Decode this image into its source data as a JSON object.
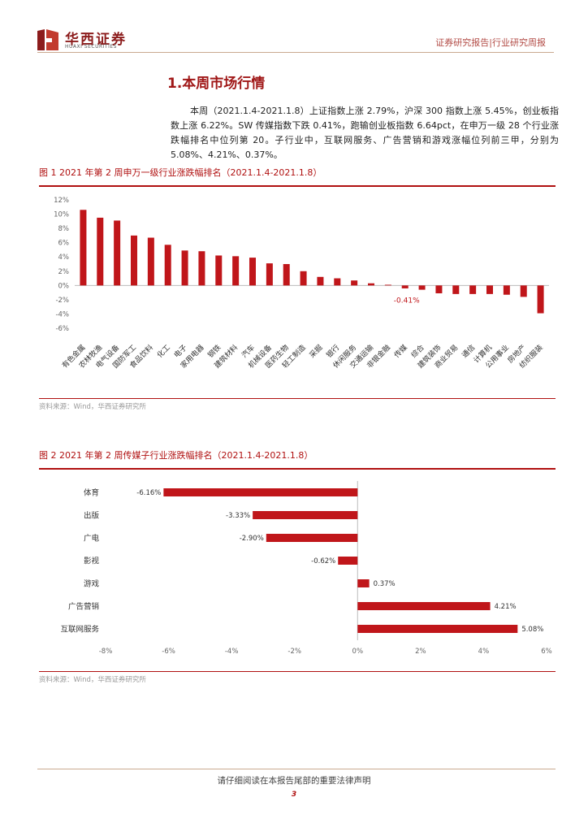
{
  "header": {
    "logo_cn": "华西证券",
    "logo_en": "HUAXI SECURITIES",
    "doc_type": "证券研究报告|行业研究周报"
  },
  "section": {
    "title": "1.本周市场行情",
    "paragraph": "本周（2021.1.4-2021.1.8）上证指数上涨 2.79%，沪深 300 指数上涨 5.45%，创业板指数上涨 6.22%。SW 传媒指数下跌 0.41%，跑输创业板指数 6.64pct，在申万一级 28 个行业涨跌幅排名中位列第 20。子行业中，互联网服务、广告营销和游戏涨幅位列前三甲，分别为 5.08%、4.21%、0.37%。"
  },
  "figure1": {
    "title": "图 1 2021 年第 2 周申万一级行业涨跌幅排名（2021.1.4-2021.1.8）",
    "source": "资料来源：Wind，华西证券研究所"
  },
  "figure2": {
    "title": "图 2 2021 年第 2 周传媒子行业涨跌幅排名（2021.1.4-2021.1.8）",
    "source": "资料来源：Wind，华西证券研究所"
  },
  "footer": {
    "disclaimer": "请仔细阅读在本报告尾部的重要法律声明",
    "page": "3"
  },
  "colors": {
    "bar": "#c0161a",
    "accent": "#a01818"
  },
  "chart_data": [
    {
      "type": "bar",
      "title": "",
      "categories": [
        "有色金属",
        "农林牧渔",
        "电气设备",
        "国防军工",
        "食品饮料",
        "化工",
        "电子",
        "家用电器",
        "钢铁",
        "建筑材料",
        "汽车",
        "机械设备",
        "医药生物",
        "轻工制造",
        "采掘",
        "银行",
        "休闲服务",
        "交通运输",
        "非银金融",
        "传媒",
        "综合",
        "建筑装饰",
        "商业贸易",
        "通信",
        "计算机",
        "公用事业",
        "房地产",
        "纺织服装"
      ],
      "values": [
        10.6,
        9.5,
        9.1,
        7.0,
        6.7,
        5.7,
        4.9,
        4.8,
        4.2,
        4.1,
        3.9,
        3.1,
        3.0,
        2.0,
        1.2,
        1.0,
        0.7,
        0.3,
        0.1,
        -0.41,
        -0.6,
        -1.1,
        -1.2,
        -1.2,
        -1.2,
        -1.3,
        -1.6,
        -3.9
      ],
      "highlight_label": "-0.41%",
      "ylim": [
        -6,
        12
      ],
      "yticks": [
        "12%",
        "10%",
        "8%",
        "6%",
        "4%",
        "2%",
        "0%",
        "-2%",
        "-4%",
        "-6%"
      ],
      "grid": false
    },
    {
      "type": "bar",
      "orientation": "horizontal",
      "title": "",
      "categories": [
        "体育",
        "出版",
        "广电",
        "影视",
        "游戏",
        "广告营销",
        "互联网服务"
      ],
      "values": [
        -6.16,
        -3.33,
        -2.9,
        -0.62,
        0.37,
        4.21,
        5.08
      ],
      "value_labels": [
        "-6.16%",
        "-3.33%",
        "-2.90%",
        "-0.62%",
        "0.37%",
        "4.21%",
        "5.08%"
      ],
      "xlim": [
        -8,
        6
      ],
      "xticks": [
        "-8%",
        "-6%",
        "-4%",
        "-2%",
        "0%",
        "2%",
        "4%",
        "6%"
      ],
      "grid": false
    }
  ]
}
